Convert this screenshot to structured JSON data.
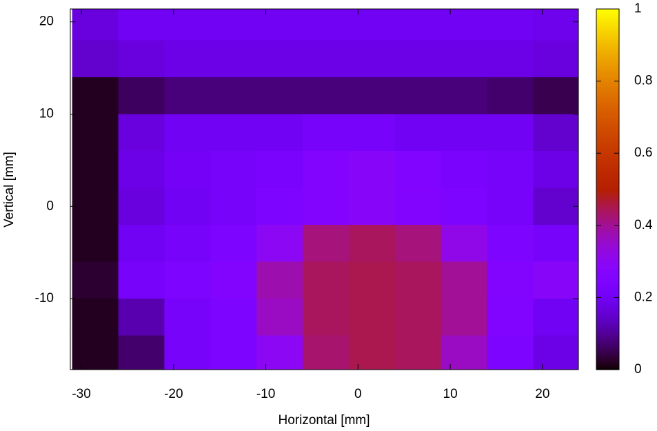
{
  "chart_data": {
    "type": "heatmap",
    "xlabel": "Horizontal [mm]",
    "ylabel": "Vertical [mm]",
    "xlim": [
      -31.2,
      23.9
    ],
    "ylim": [
      -17.7,
      21.4
    ],
    "xticks": [
      -30,
      -20,
      -10,
      0,
      10,
      20
    ],
    "yticks": [
      -10,
      0,
      10,
      20
    ],
    "xbins": [
      -31,
      -26,
      -21,
      -16,
      -11,
      -6,
      -1,
      4,
      9,
      14,
      19,
      24
    ],
    "ybins": [
      22,
      18,
      14,
      10,
      6,
      2,
      -2,
      -6,
      -10,
      -14,
      -18
    ],
    "z": [
      [
        0.17,
        0.2,
        0.2,
        0.2,
        0.2,
        0.2,
        0.2,
        0.2,
        0.2,
        0.2,
        0.19
      ],
      [
        0.15,
        0.17,
        0.18,
        0.18,
        0.18,
        0.18,
        0.18,
        0.18,
        0.18,
        0.18,
        0.17
      ],
      [
        0.02,
        0.06,
        0.08,
        0.08,
        0.08,
        0.08,
        0.08,
        0.08,
        0.08,
        0.07,
        0.05
      ],
      [
        0.02,
        0.17,
        0.2,
        0.2,
        0.2,
        0.22,
        0.22,
        0.2,
        0.2,
        0.2,
        0.15
      ],
      [
        0.02,
        0.18,
        0.21,
        0.22,
        0.23,
        0.26,
        0.28,
        0.25,
        0.23,
        0.22,
        0.18
      ],
      [
        0.02,
        0.17,
        0.2,
        0.22,
        0.24,
        0.26,
        0.28,
        0.26,
        0.24,
        0.22,
        0.15
      ],
      [
        0.02,
        0.2,
        0.22,
        0.24,
        0.3,
        0.42,
        0.44,
        0.42,
        0.32,
        0.24,
        0.22
      ],
      [
        0.03,
        0.22,
        0.24,
        0.26,
        0.38,
        0.44,
        0.45,
        0.44,
        0.4,
        0.26,
        0.28
      ],
      [
        0.02,
        0.12,
        0.22,
        0.24,
        0.36,
        0.44,
        0.45,
        0.44,
        0.4,
        0.25,
        0.2
      ],
      [
        0.02,
        0.07,
        0.22,
        0.24,
        0.3,
        0.43,
        0.45,
        0.44,
        0.36,
        0.24,
        0.18
      ]
    ],
    "cblim": [
      0,
      1
    ],
    "cbticks": [
      0,
      0.2,
      0.4,
      0.6,
      0.8,
      1
    ]
  }
}
